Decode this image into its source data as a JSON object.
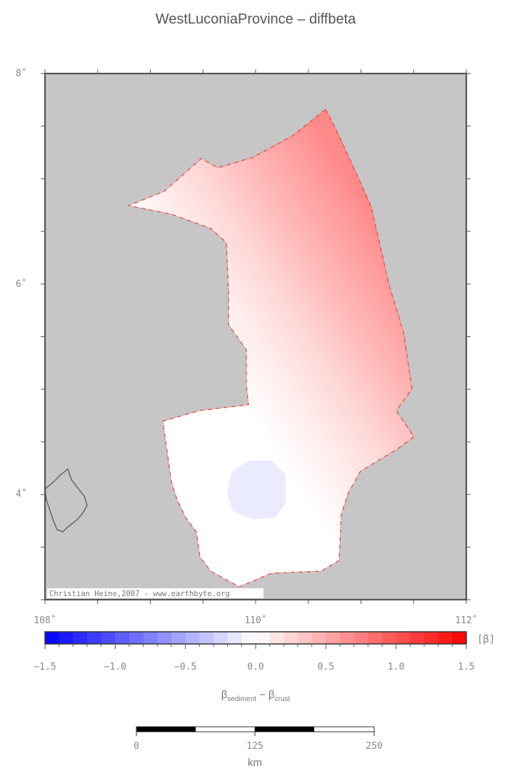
{
  "title": "WestLuconiaProvince – diffbeta",
  "map": {
    "lon_range": [
      108,
      112
    ],
    "lat_range": [
      3.0,
      8.0
    ],
    "lat_ticks": [
      "8˚",
      "6˚",
      "4˚"
    ],
    "lon_ticks": [
      "108˚",
      "110˚",
      "112˚"
    ],
    "background_color": "#c6c6c6",
    "outline_color": "#e8403c",
    "credit": "Christian Heine,2007 - www.earthbyte.org"
  },
  "colorbar": {
    "min": -1.5,
    "max": 1.5,
    "tick_labels": [
      "−1.5",
      "−1.0",
      "−0.5",
      "0.0",
      "0.5",
      "1.0",
      "1.5"
    ],
    "unit_label": "[β]",
    "low_color": "#0000ff",
    "mid_color": "#ffffff",
    "high_color": "#ff0000",
    "label_main": "β",
    "label_sub1": "sediment",
    "label_minus": " − β",
    "label_sub2": "crust"
  },
  "scalebar": {
    "tick_labels": [
      "0",
      "125",
      "250"
    ],
    "unit": "km"
  }
}
